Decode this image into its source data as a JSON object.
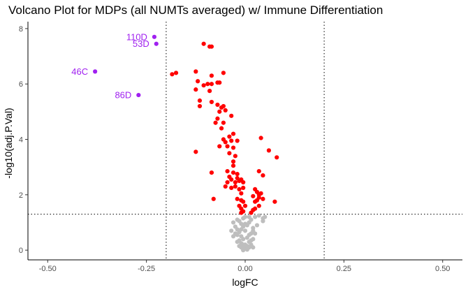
{
  "chart_data": {
    "type": "scatter",
    "title": "Volcano Plot for MDPs (all NUMTs averaged) w/ Immune Differentiation",
    "xlabel": "logFC",
    "ylabel": "-log10(adj.P.Val)",
    "xlim": [
      -0.55,
      0.55
    ],
    "ylim": [
      -0.35,
      8.25
    ],
    "xticks": [
      -0.5,
      -0.25,
      0,
      0.25,
      0.5
    ],
    "xtick_labels": [
      "-0.50",
      "-0.25",
      "0.00",
      "0.25",
      "0.50"
    ],
    "yticks": [
      0,
      2,
      4,
      6,
      8
    ],
    "ytick_labels": [
      "0",
      "2",
      "4",
      "6",
      "8"
    ],
    "grid": false,
    "thresholds": {
      "logfc": [
        -0.2,
        0.2
      ],
      "neg_log10_p": 1.3
    },
    "colors": {
      "significant": "#ff0000",
      "nonsignificant": "#bebebe",
      "highlighted": "#a020f0",
      "threshold_line": "#000000"
    },
    "series": [
      {
        "color": "#ff0000",
        "points": [
          [
            -0.185,
            6.35
          ],
          [
            -0.175,
            6.4
          ],
          [
            -0.125,
            6.45
          ],
          [
            -0.105,
            7.45
          ],
          [
            -0.09,
            7.35
          ],
          [
            -0.085,
            7.35
          ],
          [
            -0.085,
            6.3
          ],
          [
            -0.055,
            6.4
          ],
          [
            -0.12,
            6.1
          ],
          [
            -0.105,
            5.95
          ],
          [
            -0.095,
            6.0
          ],
          [
            -0.085,
            6.0
          ],
          [
            -0.07,
            6.05
          ],
          [
            -0.065,
            6.05
          ],
          [
            -0.125,
            5.8
          ],
          [
            -0.09,
            5.75
          ],
          [
            -0.115,
            5.4
          ],
          [
            -0.115,
            5.2
          ],
          [
            -0.085,
            5.35
          ],
          [
            -0.07,
            5.25
          ],
          [
            -0.06,
            5.15
          ],
          [
            -0.055,
            5.2
          ],
          [
            -0.05,
            5.05
          ],
          [
            -0.065,
            5.0
          ],
          [
            -0.035,
            4.85
          ],
          [
            -0.07,
            4.75
          ],
          [
            -0.075,
            4.6
          ],
          [
            -0.055,
            4.6
          ],
          [
            -0.06,
            4.4
          ],
          [
            -0.03,
            4.2
          ],
          [
            -0.04,
            4.1
          ],
          [
            -0.055,
            4.0
          ],
          [
            -0.05,
            3.9
          ],
          [
            -0.035,
            3.95
          ],
          [
            -0.02,
            3.95
          ],
          [
            -0.065,
            3.75
          ],
          [
            -0.045,
            3.75
          ],
          [
            -0.03,
            3.7
          ],
          [
            -0.04,
            3.5
          ],
          [
            -0.025,
            3.4
          ],
          [
            -0.125,
            3.55
          ],
          [
            -0.03,
            3.2
          ],
          [
            -0.03,
            3.05
          ],
          [
            -0.045,
            2.85
          ],
          [
            -0.04,
            2.65
          ],
          [
            -0.03,
            2.8
          ],
          [
            -0.02,
            2.75
          ],
          [
            -0.085,
            2.8
          ],
          [
            -0.02,
            2.6
          ],
          [
            -0.035,
            2.55
          ],
          [
            -0.025,
            2.45
          ],
          [
            -0.015,
            2.5
          ],
          [
            -0.01,
            2.55
          ],
          [
            -0.005,
            2.45
          ],
          [
            -0.045,
            2.45
          ],
          [
            -0.05,
            2.3
          ],
          [
            -0.035,
            2.25
          ],
          [
            -0.025,
            2.3
          ],
          [
            -0.015,
            2.2
          ],
          [
            -0.005,
            2.25
          ],
          [
            -0.01,
            2.05
          ],
          [
            -0.02,
            1.85
          ],
          [
            -0.01,
            1.8
          ],
          [
            -0.005,
            1.75
          ],
          [
            -0.08,
            1.85
          ],
          [
            -0.015,
            1.6
          ],
          [
            -0.01,
            1.5
          ],
          [
            -0.005,
            1.4
          ],
          [
            0.0,
            1.6
          ],
          [
            -0.01,
            1.35
          ],
          [
            0.025,
            2.2
          ],
          [
            0.03,
            2.1
          ],
          [
            0.035,
            2.0
          ],
          [
            0.04,
            2.05
          ],
          [
            0.02,
            1.95
          ],
          [
            0.03,
            1.8
          ],
          [
            0.025,
            1.75
          ],
          [
            0.045,
            1.85
          ],
          [
            0.035,
            1.6
          ],
          [
            0.025,
            1.5
          ],
          [
            0.02,
            1.45
          ],
          [
            0.015,
            1.35
          ],
          [
            0.035,
            2.85
          ],
          [
            0.045,
            2.7
          ],
          [
            0.04,
            4.05
          ],
          [
            0.06,
            3.6
          ],
          [
            0.08,
            3.35
          ],
          [
            0.035,
            1.9
          ],
          [
            0.075,
            1.75
          ]
        ]
      },
      {
        "color": "#bebebe",
        "points": [
          [
            0.0,
            0.1
          ],
          [
            0.0,
            0.2
          ],
          [
            0.005,
            0.05
          ],
          [
            0.005,
            0.15
          ],
          [
            0.01,
            0.1
          ],
          [
            -0.005,
            0.05
          ],
          [
            -0.005,
            0.2
          ],
          [
            -0.01,
            0.1
          ],
          [
            -0.01,
            0.25
          ],
          [
            0.01,
            0.3
          ],
          [
            0.015,
            0.2
          ],
          [
            -0.015,
            0.15
          ],
          [
            -0.015,
            0.35
          ],
          [
            0.02,
            0.4
          ],
          [
            0.02,
            0.1
          ],
          [
            -0.02,
            0.3
          ],
          [
            -0.005,
            0.4
          ],
          [
            0.005,
            0.45
          ],
          [
            -0.01,
            0.5
          ],
          [
            0.01,
            0.55
          ],
          [
            0.015,
            0.6
          ],
          [
            -0.015,
            0.65
          ],
          [
            0.0,
            0.7
          ],
          [
            -0.02,
            0.75
          ],
          [
            0.02,
            0.8
          ],
          [
            -0.005,
            0.85
          ],
          [
            0.005,
            0.9
          ],
          [
            -0.01,
            0.95
          ],
          [
            0.01,
            1.0
          ],
          [
            -0.015,
            1.05
          ],
          [
            0.015,
            1.1
          ],
          [
            -0.005,
            1.15
          ],
          [
            0.0,
            1.2
          ],
          [
            -0.03,
            0.5
          ],
          [
            0.025,
            0.6
          ],
          [
            -0.025,
            0.85
          ],
          [
            0.03,
            0.9
          ],
          [
            -0.03,
            1.0
          ],
          [
            -0.005,
            0.0
          ],
          [
            0.005,
            0.02
          ],
          [
            -0.02,
            1.1
          ],
          [
            0.01,
            1.2
          ],
          [
            -0.035,
            0.7
          ],
          [
            0.045,
            1.05
          ],
          [
            0.045,
            1.15
          ],
          [
            0.05,
            1.2
          ],
          [
            0.025,
            1.2
          ],
          [
            0.035,
            1.25
          ],
          [
            -0.02,
            0.55
          ],
          [
            0.02,
            0.7
          ],
          [
            -0.01,
            0.75
          ],
          [
            0.015,
            0.35
          ],
          [
            -0.025,
            0.6
          ],
          [
            0.0,
            0.95
          ]
        ]
      },
      {
        "color": "#a020f0",
        "points": [
          [
            -0.23,
            7.7
          ],
          [
            -0.225,
            7.45
          ],
          [
            -0.38,
            6.45
          ],
          [
            -0.27,
            5.6
          ]
        ]
      }
    ],
    "annotations": [
      {
        "text": "110D",
        "x": -0.23,
        "y": 7.7
      },
      {
        "text": "53D",
        "x": -0.225,
        "y": 7.45
      },
      {
        "text": "46C",
        "x": -0.38,
        "y": 6.45
      },
      {
        "text": "86D",
        "x": -0.27,
        "y": 5.6
      }
    ]
  }
}
